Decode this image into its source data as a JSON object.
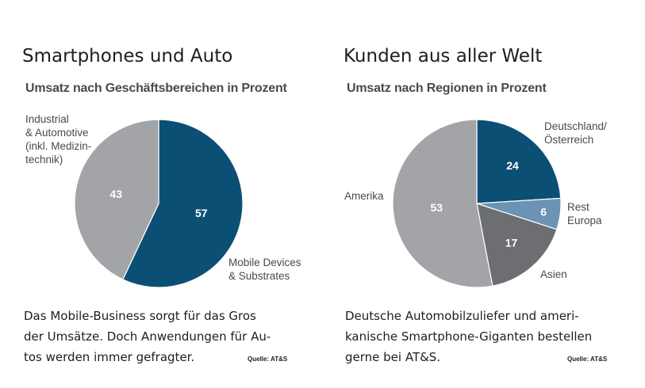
{
  "chart_data": [
    {
      "type": "pie",
      "title": "Smartphones und Auto",
      "subtitle": "Umsatz nach Geschäftsbereichen in Prozent",
      "slices": [
        {
          "label": [
            "Mobile Devices",
            "& Substrates"
          ],
          "value": 57,
          "color": "#0c4f75"
        },
        {
          "label": [
            "Industrial",
            "& Automotive",
            "(inkl. Medizin-",
            "technik)"
          ],
          "value": 43,
          "color": "#a3a4a7"
        }
      ]
    },
    {
      "type": "pie",
      "title": "Kunden aus aller Welt",
      "subtitle": "Umsatz nach Regionen in Prozent",
      "slices": [
        {
          "label": [
            "Deutschland/",
            "Österreich"
          ],
          "value": 24,
          "color": "#0c4f75"
        },
        {
          "label": [
            "Rest",
            "Europa"
          ],
          "value": 6,
          "color": "#6a93b4"
        },
        {
          "label": [
            "Asien"
          ],
          "value": 17,
          "color": "#6d6e71"
        },
        {
          "label": [
            "Amerika"
          ],
          "value": 53,
          "color": "#a3a4a7"
        }
      ]
    }
  ],
  "captions": [
    {
      "lines": [
        "Das Mobile-Business sorgt für das Gros",
        "der Umsätze. Doch Anwendungen für Au-",
        "tos werden immer gefragter."
      ],
      "source": "Quelle: AT&S"
    },
    {
      "lines": [
        "Deutsche Automobilzuliefer und ameri-",
        "kanische Smartphone-Giganten bestellen",
        "gerne bei AT&S."
      ],
      "source": "Quelle: AT&S"
    }
  ]
}
